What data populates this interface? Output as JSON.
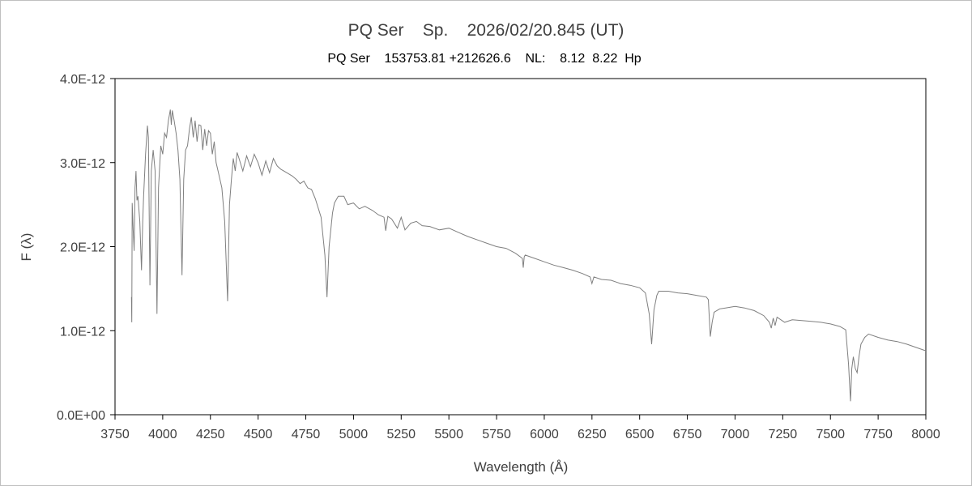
{
  "chart_data": {
    "type": "line",
    "title": "PQ Ser    Sp.    2026/02/20.845 (UT)",
    "subtitle": "PQ Ser    153753.81 +212626.6    NL:    8.12  8.22  Hp",
    "xlabel": "Wavelength (Å)",
    "ylabel": "F (λ)",
    "xlim": [
      3750,
      8000
    ],
    "ylim": [
      0,
      4e-12
    ],
    "x_ticks": [
      "3750",
      "4000",
      "4250",
      "4500",
      "4750",
      "5000",
      "5250",
      "5500",
      "5750",
      "6000",
      "6250",
      "6500",
      "6750",
      "7000",
      "7250",
      "7500",
      "7750",
      "8000"
    ],
    "y_ticks": [
      "0.0E+00",
      "1.0E-12",
      "2.0E-12",
      "3.0E-12",
      "4.0E-12"
    ],
    "grid": false,
    "line_color": "#7f7f7f",
    "flux_unit_scale": 1e-12,
    "series": [
      {
        "points": [
          [
            3836,
            1.4
          ],
          [
            3838,
            1.1
          ],
          [
            3840,
            2.52
          ],
          [
            3845,
            2.2
          ],
          [
            3850,
            1.95
          ],
          [
            3855,
            2.7
          ],
          [
            3860,
            2.9
          ],
          [
            3865,
            2.55
          ],
          [
            3870,
            2.6
          ],
          [
            3880,
            2.3
          ],
          [
            3889,
            1.72
          ],
          [
            3895,
            2.3
          ],
          [
            3900,
            2.6
          ],
          [
            3910,
            3.1
          ],
          [
            3920,
            3.44
          ],
          [
            3925,
            3.3
          ],
          [
            3933,
            1.54
          ],
          [
            3940,
            2.9
          ],
          [
            3950,
            3.15
          ],
          [
            3960,
            2.9
          ],
          [
            3970,
            1.2
          ],
          [
            3978,
            2.7
          ],
          [
            3990,
            3.2
          ],
          [
            4000,
            3.1
          ],
          [
            4010,
            3.35
          ],
          [
            4020,
            3.3
          ],
          [
            4030,
            3.5
          ],
          [
            4040,
            3.63
          ],
          [
            4045,
            3.45
          ],
          [
            4050,
            3.62
          ],
          [
            4060,
            3.5
          ],
          [
            4070,
            3.35
          ],
          [
            4080,
            3.15
          ],
          [
            4090,
            2.8
          ],
          [
            4101,
            1.66
          ],
          [
            4110,
            2.8
          ],
          [
            4120,
            3.15
          ],
          [
            4130,
            3.2
          ],
          [
            4140,
            3.4
          ],
          [
            4150,
            3.54
          ],
          [
            4160,
            3.3
          ],
          [
            4170,
            3.5
          ],
          [
            4180,
            3.25
          ],
          [
            4190,
            3.45
          ],
          [
            4200,
            3.44
          ],
          [
            4210,
            3.15
          ],
          [
            4220,
            3.4
          ],
          [
            4230,
            3.2
          ],
          [
            4240,
            3.38
          ],
          [
            4250,
            3.35
          ],
          [
            4260,
            3.1
          ],
          [
            4270,
            3.25
          ],
          [
            4280,
            3.0
          ],
          [
            4290,
            2.9
          ],
          [
            4310,
            2.7
          ],
          [
            4325,
            2.3
          ],
          [
            4340,
            1.35
          ],
          [
            4350,
            2.5
          ],
          [
            4360,
            2.8
          ],
          [
            4370,
            3.05
          ],
          [
            4380,
            2.9
          ],
          [
            4390,
            3.12
          ],
          [
            4400,
            3.05
          ],
          [
            4420,
            2.9
          ],
          [
            4440,
            3.08
          ],
          [
            4460,
            2.95
          ],
          [
            4480,
            3.1
          ],
          [
            4500,
            3.0
          ],
          [
            4520,
            2.85
          ],
          [
            4540,
            3.02
          ],
          [
            4560,
            2.88
          ],
          [
            4580,
            3.05
          ],
          [
            4600,
            2.96
          ],
          [
            4620,
            2.92
          ],
          [
            4650,
            2.88
          ],
          [
            4680,
            2.84
          ],
          [
            4700,
            2.8
          ],
          [
            4720,
            2.75
          ],
          [
            4740,
            2.78
          ],
          [
            4760,
            2.7
          ],
          [
            4780,
            2.68
          ],
          [
            4800,
            2.57
          ],
          [
            4830,
            2.35
          ],
          [
            4850,
            1.9
          ],
          [
            4861,
            1.4
          ],
          [
            4872,
            2.0
          ],
          [
            4890,
            2.4
          ],
          [
            4900,
            2.52
          ],
          [
            4920,
            2.6
          ],
          [
            4950,
            2.6
          ],
          [
            4970,
            2.5
          ],
          [
            5000,
            2.52
          ],
          [
            5030,
            2.45
          ],
          [
            5060,
            2.48
          ],
          [
            5100,
            2.43
          ],
          [
            5130,
            2.38
          ],
          [
            5160,
            2.35
          ],
          [
            5169,
            2.19
          ],
          [
            5180,
            2.36
          ],
          [
            5200,
            2.33
          ],
          [
            5230,
            2.22
          ],
          [
            5250,
            2.35
          ],
          [
            5270,
            2.2
          ],
          [
            5300,
            2.28
          ],
          [
            5330,
            2.3
          ],
          [
            5360,
            2.25
          ],
          [
            5400,
            2.24
          ],
          [
            5450,
            2.2
          ],
          [
            5500,
            2.22
          ],
          [
            5550,
            2.17
          ],
          [
            5600,
            2.12
          ],
          [
            5650,
            2.08
          ],
          [
            5700,
            2.04
          ],
          [
            5750,
            2.0
          ],
          [
            5800,
            1.98
          ],
          [
            5850,
            1.92
          ],
          [
            5885,
            1.86
          ],
          [
            5890,
            1.75
          ],
          [
            5895,
            1.88
          ],
          [
            5900,
            1.9
          ],
          [
            5950,
            1.86
          ],
          [
            6000,
            1.82
          ],
          [
            6050,
            1.78
          ],
          [
            6100,
            1.75
          ],
          [
            6150,
            1.72
          ],
          [
            6200,
            1.68
          ],
          [
            6240,
            1.64
          ],
          [
            6250,
            1.56
          ],
          [
            6260,
            1.64
          ],
          [
            6300,
            1.61
          ],
          [
            6350,
            1.6
          ],
          [
            6400,
            1.56
          ],
          [
            6450,
            1.54
          ],
          [
            6500,
            1.51
          ],
          [
            6530,
            1.45
          ],
          [
            6550,
            1.2
          ],
          [
            6563,
            0.84
          ],
          [
            6575,
            1.25
          ],
          [
            6590,
            1.42
          ],
          [
            6600,
            1.47
          ],
          [
            6650,
            1.47
          ],
          [
            6700,
            1.45
          ],
          [
            6750,
            1.44
          ],
          [
            6800,
            1.42
          ],
          [
            6850,
            1.4
          ],
          [
            6860,
            1.37
          ],
          [
            6870,
            0.93
          ],
          [
            6880,
            1.1
          ],
          [
            6890,
            1.22
          ],
          [
            6920,
            1.26
          ],
          [
            6950,
            1.27
          ],
          [
            7000,
            1.29
          ],
          [
            7050,
            1.27
          ],
          [
            7100,
            1.24
          ],
          [
            7150,
            1.18
          ],
          [
            7180,
            1.1
          ],
          [
            7190,
            1.03
          ],
          [
            7200,
            1.15
          ],
          [
            7210,
            1.06
          ],
          [
            7220,
            1.16
          ],
          [
            7260,
            1.1
          ],
          [
            7300,
            1.13
          ],
          [
            7350,
            1.12
          ],
          [
            7400,
            1.11
          ],
          [
            7450,
            1.1
          ],
          [
            7500,
            1.08
          ],
          [
            7550,
            1.05
          ],
          [
            7580,
            1.01
          ],
          [
            7595,
            0.6
          ],
          [
            7605,
            0.16
          ],
          [
            7612,
            0.55
          ],
          [
            7620,
            0.69
          ],
          [
            7630,
            0.55
          ],
          [
            7640,
            0.5
          ],
          [
            7650,
            0.7
          ],
          [
            7660,
            0.84
          ],
          [
            7680,
            0.92
          ],
          [
            7700,
            0.96
          ],
          [
            7750,
            0.92
          ],
          [
            7800,
            0.89
          ],
          [
            7850,
            0.87
          ],
          [
            7900,
            0.84
          ],
          [
            7950,
            0.8
          ],
          [
            8000,
            0.76
          ]
        ]
      }
    ]
  }
}
